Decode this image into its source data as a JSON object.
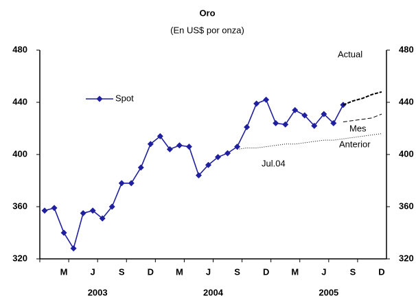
{
  "chart_data": {
    "type": "line",
    "title": "Oro",
    "subtitle": "(En US$ por onza)",
    "categories": [
      null,
      null,
      "M",
      null,
      null,
      "J",
      null,
      null,
      "S",
      null,
      null,
      "D",
      null,
      null,
      "M",
      null,
      null,
      "J",
      null,
      null,
      "S",
      null,
      null,
      "D",
      null,
      null,
      "M",
      null,
      null,
      "J",
      null,
      null,
      "S",
      null,
      null,
      "D"
    ],
    "years": [
      "2003",
      "2004",
      "2005"
    ],
    "ylim": [
      320,
      480
    ],
    "yticks": [
      320,
      360,
      400,
      440,
      480
    ],
    "y2lim": [
      320,
      480
    ],
    "y2ticks": [
      320,
      360,
      400,
      440,
      480
    ],
    "legend": "upper left",
    "series": [
      {
        "name": "Spot",
        "color": "#1f1f9f",
        "line_style": "solid",
        "marker": "diamond",
        "values": [
          357,
          359,
          340,
          328,
          355,
          357,
          351,
          360,
          378,
          378,
          390,
          408,
          414,
          404,
          407,
          406,
          384,
          392,
          398,
          401,
          406,
          421,
          439,
          442,
          424,
          423,
          434,
          430,
          422,
          431,
          424,
          438,
          null,
          null,
          null,
          null
        ]
      },
      {
        "color": "#000000",
        "line_style": "dashed-bold",
        "marker": "none",
        "values": [
          null,
          null,
          null,
          null,
          null,
          null,
          null,
          null,
          null,
          null,
          null,
          null,
          null,
          null,
          null,
          null,
          null,
          null,
          null,
          null,
          null,
          null,
          null,
          null,
          null,
          null,
          null,
          null,
          null,
          null,
          null,
          438,
          441,
          443,
          446,
          448
        ]
      },
      {
        "color": "#000000",
        "line_style": "dashed",
        "marker": "none",
        "values": [
          null,
          null,
          null,
          null,
          null,
          null,
          null,
          null,
          null,
          null,
          null,
          null,
          null,
          null,
          null,
          null,
          null,
          null,
          null,
          null,
          null,
          null,
          null,
          null,
          null,
          null,
          null,
          null,
          null,
          null,
          null,
          425,
          426,
          427,
          428,
          431
        ]
      },
      {
        "color": "#000000",
        "line_style": "dotted",
        "marker": "none",
        "values": [
          null,
          null,
          null,
          null,
          null,
          null,
          null,
          null,
          null,
          null,
          null,
          null,
          null,
          null,
          null,
          null,
          null,
          null,
          null,
          null,
          404,
          405,
          405,
          406,
          407,
          408,
          408,
          409,
          410,
          411,
          411,
          412,
          413,
          414,
          415,
          416
        ]
      }
    ],
    "annotations": [
      "Actual",
      "Mes",
      "Anterior",
      "Jul.04"
    ]
  }
}
